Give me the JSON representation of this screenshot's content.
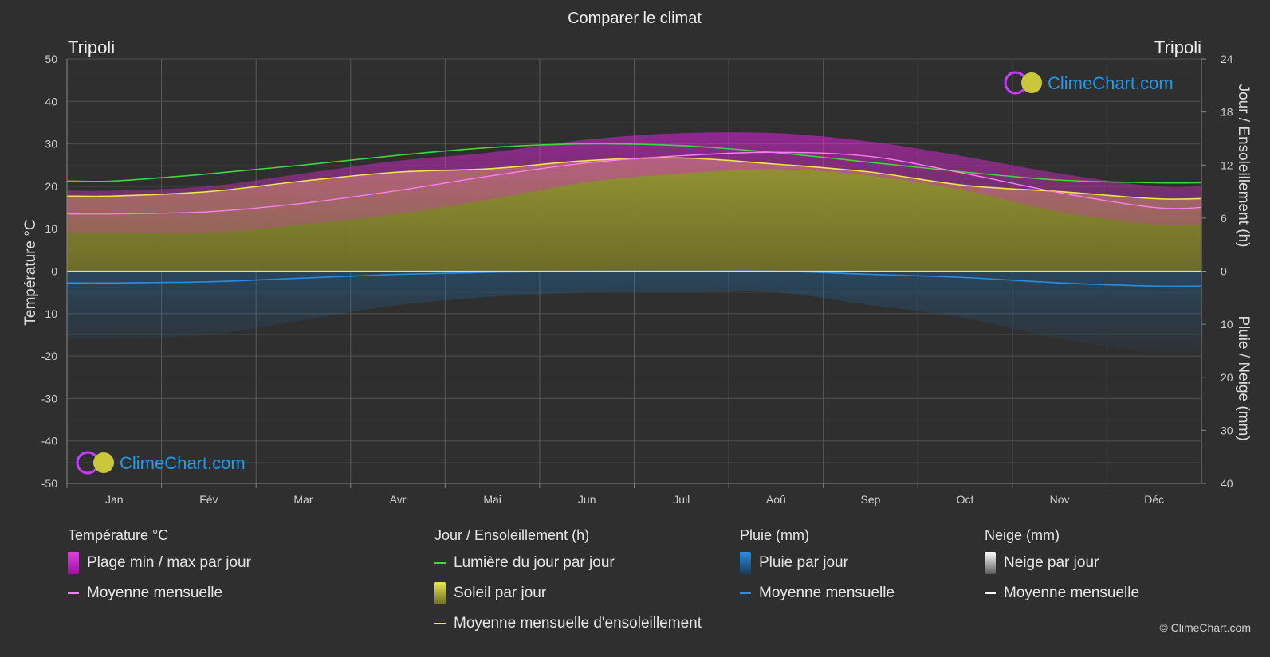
{
  "title": "Comparer le climat",
  "location_left": "Tripoli",
  "location_right": "Tripoli",
  "brand": "ClimeChart.com",
  "copyright": "© ClimeChart.com",
  "colors": {
    "background": "#2f2f2f",
    "temp_range": "#d61fd6",
    "temp_mean": "#ff7cf0",
    "daylight": "#3fd63f",
    "sunshine_fill": "#8c8c2e",
    "sunshine_mean": "#e8e84a",
    "rain": "#1f86d6",
    "rain_mean": "#2a8ce0",
    "snow_mean": "#ffffff"
  },
  "legend": {
    "temperature": {
      "heading": "Température °C",
      "range_label": "Plage min / max par jour",
      "mean_label": "Moyenne mensuelle"
    },
    "sun": {
      "heading": "Jour / Ensoleillement (h)",
      "daylight_label": "Lumière du jour par jour",
      "sunshine_label": "Soleil par jour",
      "sunshine_mean_label": "Moyenne mensuelle d'ensoleillement"
    },
    "rain": {
      "heading": "Pluie (mm)",
      "rain_label": "Pluie par jour",
      "mean_label": "Moyenne mensuelle"
    },
    "snow": {
      "heading": "Neige (mm)",
      "snow_label": "Neige par jour",
      "mean_label": "Moyenne mensuelle"
    }
  },
  "chart_data": {
    "type": "area",
    "categories": [
      "Jan",
      "Fév",
      "Mar",
      "Avr",
      "Mai",
      "Jun",
      "Juil",
      "Aoû",
      "Sep",
      "Oct",
      "Nov",
      "Déc"
    ],
    "axes": {
      "y_left": {
        "label": "Température °C",
        "min": -50,
        "max": 50,
        "ticks": [
          50,
          40,
          30,
          20,
          10,
          0,
          -10,
          -20,
          -30,
          -40,
          -50
        ]
      },
      "y_right_top": {
        "label": "Jour / Ensoleillement (h)",
        "min": 0,
        "max": 24,
        "ticks": [
          24,
          18,
          12,
          6,
          0
        ]
      },
      "y_right_bottom": {
        "label": "Pluie / Neige (mm)",
        "min": 0,
        "max": 40,
        "ticks": [
          10,
          20,
          30,
          40
        ]
      }
    },
    "grid": true,
    "series": [
      {
        "name": "Moyenne mensuelle",
        "kind": "temp_mean",
        "unit": "°C",
        "values": [
          13.5,
          14.0,
          16.0,
          19.0,
          22.5,
          25.5,
          27.2,
          28.0,
          27.0,
          23.0,
          18.5,
          15.0
        ]
      },
      {
        "name": "Plage min / max par jour",
        "kind": "temp_max",
        "unit": "°C",
        "values": [
          19.0,
          20.0,
          23.0,
          26.0,
          28.0,
          31.0,
          32.5,
          32.5,
          30.5,
          27.0,
          23.0,
          20.0
        ]
      },
      {
        "name": "Plage min / max par jour",
        "kind": "temp_min",
        "unit": "°C",
        "values": [
          9.0,
          9.0,
          11.0,
          13.5,
          17.0,
          21.0,
          23.0,
          24.0,
          22.5,
          19.0,
          14.0,
          11.0
        ]
      },
      {
        "name": "Lumière du jour par jour",
        "kind": "daylight",
        "unit": "h",
        "values": [
          10.2,
          11.0,
          12.0,
          13.1,
          14.0,
          14.4,
          14.2,
          13.4,
          12.3,
          11.2,
          10.3,
          10.0
        ]
      },
      {
        "name": "Moyenne mensuelle d'ensoleillement",
        "kind": "sunshine_mean",
        "unit": "h",
        "values": [
          8.5,
          9.0,
          10.2,
          11.2,
          11.6,
          12.5,
          12.8,
          12.1,
          11.2,
          9.7,
          9.0,
          8.2
        ]
      },
      {
        "name": "Moyenne mensuelle",
        "kind": "rain_mean",
        "unit": "mm",
        "values": [
          2.2,
          2.0,
          1.3,
          0.6,
          0.2,
          0.0,
          0.0,
          0.0,
          0.6,
          1.2,
          2.2,
          2.8
        ]
      },
      {
        "name": "Moyenne mensuelle",
        "kind": "snow_mean",
        "unit": "mm",
        "values": [
          0,
          0,
          0,
          0,
          0,
          0,
          0,
          0,
          0,
          0,
          0,
          0
        ]
      }
    ]
  }
}
